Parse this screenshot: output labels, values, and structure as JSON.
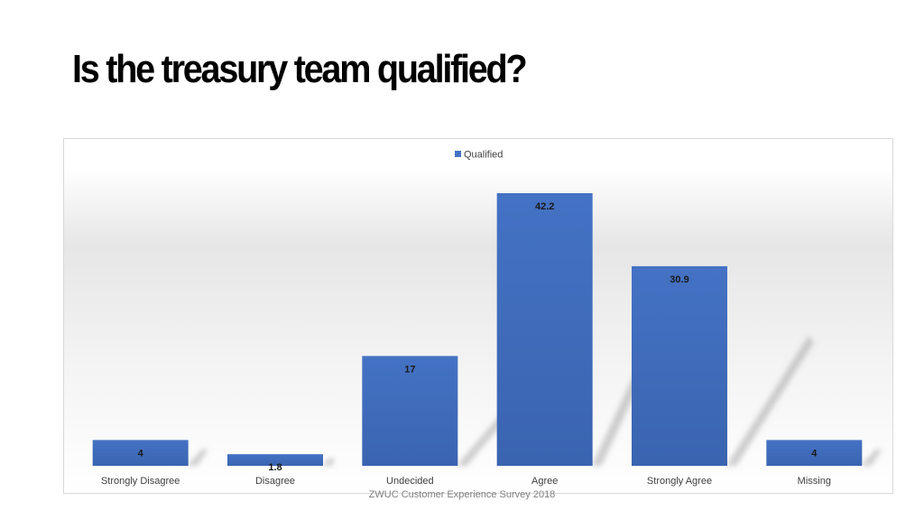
{
  "slide": {
    "title": "Is the treasury team qualified?",
    "caption": "ZWUC Customer Experience Survey 2018"
  },
  "colors": {
    "bar": "#4472c4",
    "bar_dark": "#2f5597"
  },
  "chart_data": {
    "type": "bar",
    "title": "",
    "xlabel": "",
    "ylabel": "",
    "categories": [
      "Strongly Disagree",
      "Disagree",
      "Undecided",
      "Agree",
      "Strongly Agree",
      "Missing"
    ],
    "series": [
      {
        "name": "Qualified",
        "values": [
          4,
          1.8,
          17,
          42.2,
          30.9,
          4
        ]
      }
    ],
    "data_labels": [
      "4",
      "1.8",
      "17",
      "42.2",
      "30.9",
      "4"
    ],
    "ylim": [
      0,
      45
    ],
    "grid": false,
    "legend": "top-center",
    "value_axis_visible": false
  }
}
